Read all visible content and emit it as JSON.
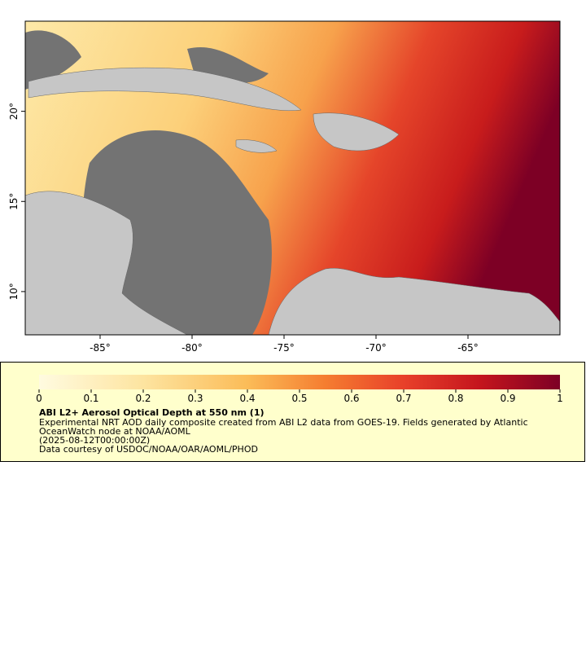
{
  "map": {
    "xlim": [
      -89.07,
      -60.0
    ],
    "ylim": [
      7.6,
      25.0
    ],
    "xticks": [
      {
        "value": -85,
        "label": "-85°"
      },
      {
        "value": -80,
        "label": "-80°"
      },
      {
        "value": -75,
        "label": "-75°"
      },
      {
        "value": -70,
        "label": "-70°"
      },
      {
        "value": -65,
        "label": "-65°"
      }
    ],
    "yticks": [
      {
        "value": 10,
        "label": "10°"
      },
      {
        "value": 15,
        "label": "15°"
      },
      {
        "value": 20,
        "label": "20°"
      }
    ]
  },
  "colorbar": {
    "lim": [
      0,
      1
    ],
    "ticks": [
      0,
      0.1,
      0.2,
      0.3,
      0.4,
      0.5,
      0.6,
      0.7,
      0.8,
      0.9,
      1
    ]
  },
  "legend": {
    "title": "ABI L2+ Aerosol Optical Depth at 550 nm (1)",
    "lines": [
      "Experimental NRT AOD daily composite created from ABI L2 data from GOES-19. Fields generated by Atlantic",
      "OceanWatch node at NOAA/AOML",
      "(2025-08-12T00:00:00Z)",
      "Data courtesy of USDOC/NOAA/OAR/AOML/PHOD"
    ]
  }
}
